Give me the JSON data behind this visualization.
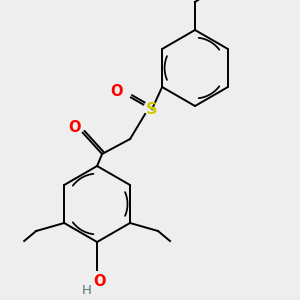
{
  "background_color": "#eeeeee",
  "bond_color": "#000000",
  "atom_colors": {
    "O": "#ff0000",
    "S": "#cccc00",
    "H": "#557777",
    "C": "#000000"
  },
  "figsize": [
    3.0,
    3.0
  ],
  "dpi": 100,
  "lw": 1.4,
  "font_size": 9.5
}
